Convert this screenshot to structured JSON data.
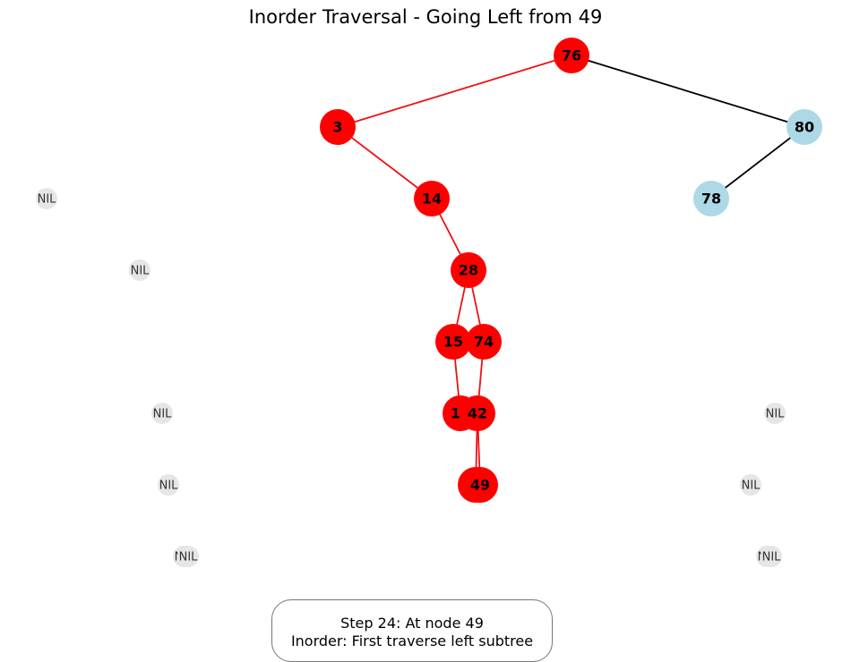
{
  "title": "Inorder Traversal - Going Left from 49",
  "colors": {
    "visited_node": "#ff0000",
    "unvisited_node": "#add8e6",
    "nil_node": "#e6e6e6",
    "visited_edge": "#ee1111",
    "unvisited_edge": "#000000"
  },
  "nodes": [
    {
      "id": "n76",
      "label": "76",
      "state": "visited"
    },
    {
      "id": "n3",
      "label": "3",
      "state": "visited"
    },
    {
      "id": "n80",
      "label": "80",
      "state": "unvisited"
    },
    {
      "id": "n14",
      "label": "14",
      "state": "visited"
    },
    {
      "id": "n78",
      "label": "78",
      "state": "unvisited"
    },
    {
      "id": "n28",
      "label": "28",
      "state": "visited"
    },
    {
      "id": "n15",
      "label": "15",
      "state": "visited"
    },
    {
      "id": "n74",
      "label": "74",
      "state": "visited"
    },
    {
      "id": "n19",
      "label": "19",
      "state": "visited"
    },
    {
      "id": "n42",
      "label": "42",
      "state": "visited"
    },
    {
      "id": "n37",
      "label": "37",
      "state": "visited"
    },
    {
      "id": "n49",
      "label": "49",
      "state": "visited"
    }
  ],
  "nil_nodes": [
    {
      "id": "nil1",
      "label": "NIL"
    },
    {
      "id": "nil2",
      "label": "NIL"
    },
    {
      "id": "nil3",
      "label": "NIL"
    },
    {
      "id": "nil4",
      "label": "NIL"
    },
    {
      "id": "nil5",
      "label": "NIL"
    },
    {
      "id": "nil6",
      "label": "NIL"
    },
    {
      "id": "nil7",
      "label": "NIL"
    },
    {
      "id": "nil8",
      "label": "NIL"
    },
    {
      "id": "nil9",
      "label": "NIL"
    },
    {
      "id": "nil10",
      "label": "NIL"
    }
  ],
  "edges": [
    {
      "from": "n76",
      "to": "n3",
      "state": "visited"
    },
    {
      "from": "n76",
      "to": "n80",
      "state": "unvisited"
    },
    {
      "from": "n80",
      "to": "n78",
      "state": "unvisited"
    },
    {
      "from": "n3",
      "to": "n14",
      "state": "visited"
    },
    {
      "from": "n14",
      "to": "n28",
      "state": "visited"
    },
    {
      "from": "n28",
      "to": "n15",
      "state": "visited"
    },
    {
      "from": "n28",
      "to": "n74",
      "state": "visited"
    },
    {
      "from": "n15",
      "to": "n19",
      "state": "visited"
    },
    {
      "from": "n74",
      "to": "n42",
      "state": "visited"
    },
    {
      "from": "n42",
      "to": "n37",
      "state": "visited"
    },
    {
      "from": "n42",
      "to": "n49",
      "state": "visited"
    }
  ],
  "status": {
    "line1": "Step 24: At node 49",
    "line2": "Inorder: First traverse left subtree"
  }
}
